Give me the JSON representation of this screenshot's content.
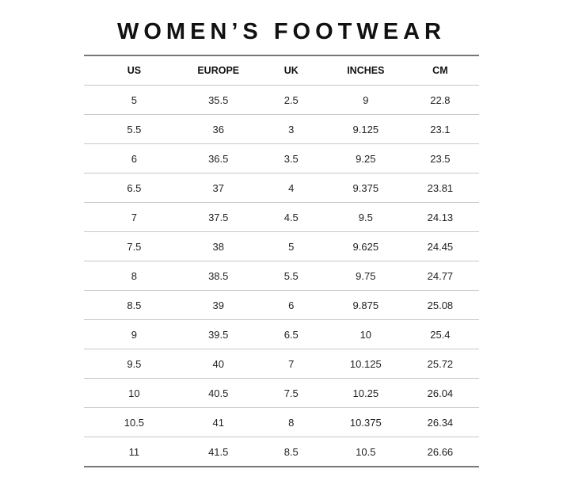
{
  "title": "WOMEN’S FOOTWEAR",
  "headers": [
    "US",
    "EUROPE",
    "UK",
    "INCHES",
    "CM"
  ],
  "rows": [
    [
      "5",
      "35.5",
      "2.5",
      "9",
      "22.8"
    ],
    [
      "5.5",
      "36",
      "3",
      "9.125",
      "23.1"
    ],
    [
      "6",
      "36.5",
      "3.5",
      "9.25",
      "23.5"
    ],
    [
      "6.5",
      "37",
      "4",
      "9.375",
      "23.81"
    ],
    [
      "7",
      "37.5",
      "4.5",
      "9.5",
      "24.13"
    ],
    [
      "7.5",
      "38",
      "5",
      "9.625",
      "24.45"
    ],
    [
      "8",
      "38.5",
      "5.5",
      "9.75",
      "24.77"
    ],
    [
      "8.5",
      "39",
      "6",
      "9.875",
      "25.08"
    ],
    [
      "9",
      "39.5",
      "6.5",
      "10",
      "25.4"
    ],
    [
      "9.5",
      "40",
      "7",
      "10.125",
      "25.72"
    ],
    [
      "10",
      "40.5",
      "7.5",
      "10.25",
      "26.04"
    ],
    [
      "10.5",
      "41",
      "8",
      "10.375",
      "26.34"
    ],
    [
      "11",
      "41.5",
      "8.5",
      "10.5",
      "26.66"
    ]
  ]
}
